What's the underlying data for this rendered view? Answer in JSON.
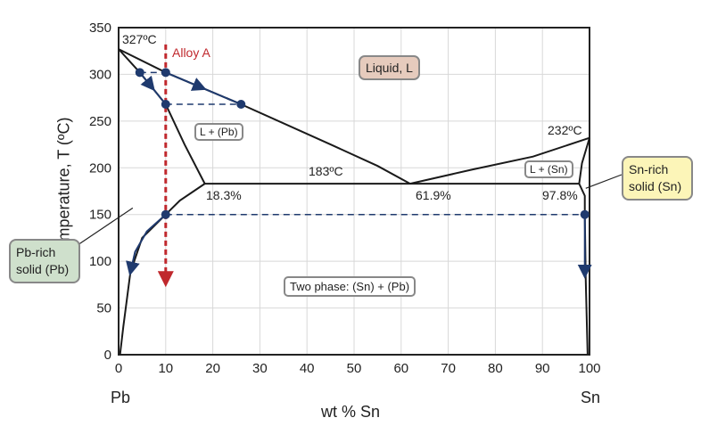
{
  "axes": {
    "xlabel": "wt % Sn",
    "ylabel": "Temperature, T  (ºC)",
    "xlim": [
      0,
      100
    ],
    "ylim": [
      0,
      350
    ],
    "xticks": [
      0,
      10,
      20,
      30,
      40,
      50,
      60,
      70,
      80,
      90,
      100
    ],
    "yticks": [
      0,
      50,
      100,
      150,
      200,
      250,
      300,
      350
    ],
    "left_element": "Pb",
    "right_element": "Sn"
  },
  "labels": {
    "pb_melt": "327ºC",
    "sn_melt": "232ºC",
    "eutectic_temp": "183ºC",
    "c_alpha": "18.3%",
    "c_eutectic": "61.9%",
    "c_beta": "97.8%",
    "alloy": "Alloy A"
  },
  "regions": {
    "liquid": "Liquid, L",
    "l_pb": "L + (Pb)",
    "l_sn": "L + (Sn)",
    "two_phase": "Two phase: (Sn) + (Pb)"
  },
  "callouts": {
    "pb_solid": "Pb-rich solid (Pb)",
    "sn_solid": "Sn-rich solid (Sn)"
  },
  "colors": {
    "line": "#1a1a1a",
    "path": "#1f3a6e",
    "alloy": "#c0282d",
    "liquid_fill": "#e6cbbd",
    "pb_fill": "#cfe0cc",
    "sn_fill": "#fcf5b8",
    "grid": "#d8d8d8"
  },
  "chart_data": {
    "type": "phase-diagram",
    "alloy_composition": 10,
    "boundaries": [
      {
        "name": "liquidus-left",
        "points": [
          [
            0,
            327
          ],
          [
            10,
            302
          ],
          [
            26,
            268
          ],
          [
            45,
            225
          ],
          [
            55,
            202
          ],
          [
            61.9,
            183
          ]
        ]
      },
      {
        "name": "liquidus-right",
        "points": [
          [
            61.9,
            183
          ],
          [
            75,
            198
          ],
          [
            88,
            212
          ],
          [
            100,
            232
          ]
        ]
      },
      {
        "name": "solidus-pb",
        "points": [
          [
            0,
            327
          ],
          [
            4.5,
            302
          ],
          [
            10,
            268
          ],
          [
            14,
            225
          ],
          [
            18.3,
            183
          ]
        ]
      },
      {
        "name": "solvus-pb",
        "points": [
          [
            18.3,
            183
          ],
          [
            13,
            165
          ],
          [
            10,
            150
          ],
          [
            5,
            125
          ],
          [
            2.5,
            88
          ],
          [
            1,
            30
          ],
          [
            0.3,
            0
          ]
        ]
      },
      {
        "name": "solidus-sn",
        "points": [
          [
            100,
            232
          ],
          [
            98.4,
            205
          ],
          [
            97.8,
            183
          ]
        ]
      },
      {
        "name": "solvus-sn",
        "points": [
          [
            97.8,
            183
          ],
          [
            99,
            170
          ],
          [
            99,
            150
          ],
          [
            99.2,
            80
          ],
          [
            99.6,
            0
          ]
        ]
      },
      {
        "name": "eutectic",
        "points": [
          [
            18.3,
            183
          ],
          [
            97.8,
            183
          ]
        ]
      }
    ],
    "markers": [
      [
        4.5,
        302
      ],
      [
        10,
        302
      ],
      [
        10,
        268
      ],
      [
        26,
        268
      ],
      [
        10,
        150
      ],
      [
        99,
        150
      ]
    ],
    "tie_lines": [
      [
        [
          4.5,
          302
        ],
        [
          10,
          302
        ]
      ],
      [
        [
          10,
          268
        ],
        [
          26,
          268
        ]
      ],
      [
        [
          10,
          150
        ],
        [
          99,
          150
        ]
      ]
    ]
  }
}
